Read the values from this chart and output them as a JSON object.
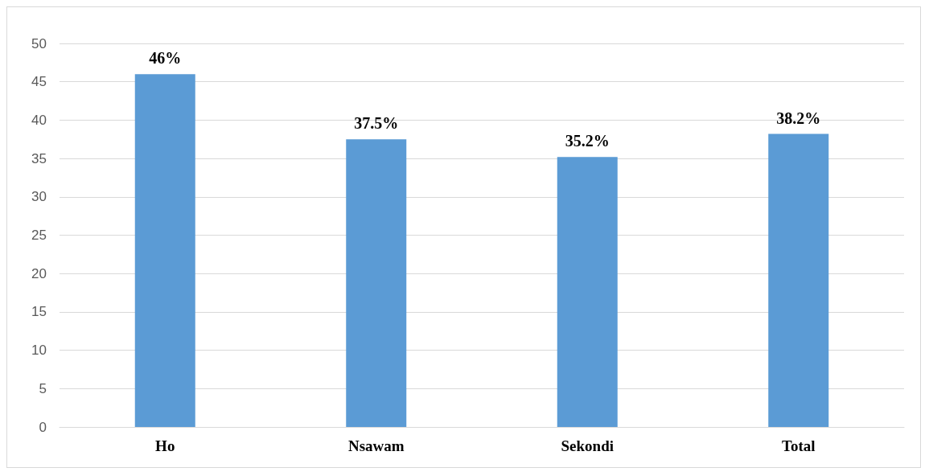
{
  "chart_data": {
    "type": "bar",
    "categories": [
      "Ho",
      "Nsawam",
      "Sekondi",
      "Total"
    ],
    "values": [
      46,
      37.5,
      35.2,
      38.2
    ],
    "value_labels": [
      "46%",
      "37.5%",
      "35.2%",
      "38.2%"
    ],
    "color": "#5b9bd5",
    "ylim": [
      0,
      50
    ],
    "yticks": [
      0,
      5,
      10,
      15,
      20,
      25,
      30,
      35,
      40,
      45,
      50
    ],
    "grid": "y"
  }
}
